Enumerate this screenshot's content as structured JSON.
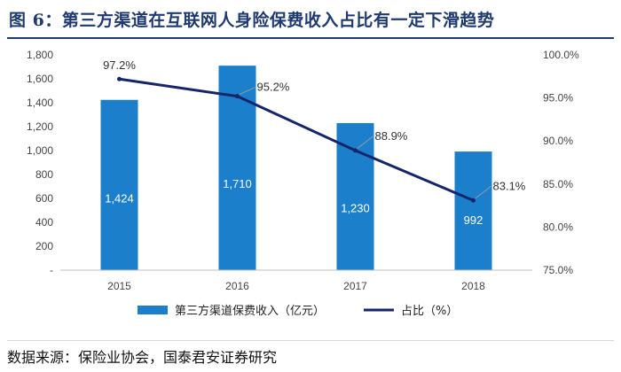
{
  "header": {
    "title": "图 6：第三方渠道在互联网人身险保费收入占比有一定下滑趋势"
  },
  "footer": {
    "source": "数据来源：保险业协会，国泰君安证券研究"
  },
  "colors": {
    "bar": "#1b7fcb",
    "line": "#15256a",
    "axis_text": "#444444",
    "bar_label": "#ffffff"
  },
  "chart_data": {
    "type": "bar",
    "categories": [
      "2015",
      "2016",
      "2017",
      "2018"
    ],
    "series": [
      {
        "name": "第三方渠道保费收入（亿元）",
        "kind": "bar",
        "axis": "left",
        "values": [
          1424,
          1710,
          1230,
          992
        ],
        "labels": [
          "1,424",
          "1,710",
          "1,230",
          "992"
        ]
      },
      {
        "name": "占比（%）",
        "kind": "line",
        "axis": "right",
        "values": [
          97.2,
          95.2,
          88.9,
          83.1
        ],
        "labels": [
          "97.2%",
          "95.2%",
          "88.9%",
          "83.1%"
        ]
      }
    ],
    "y_left": {
      "min": 0,
      "max": 1800,
      "ticks": [
        0,
        200,
        400,
        600,
        800,
        1000,
        1200,
        1400,
        1600,
        1800
      ],
      "tick_labels": [
        "-",
        "200",
        "400",
        "600",
        "800",
        "1,000",
        "1,200",
        "1,400",
        "1,600",
        "1,800"
      ]
    },
    "y_right": {
      "min": 75,
      "max": 100,
      "ticks": [
        75,
        80,
        85,
        90,
        95,
        100
      ],
      "tick_labels": [
        "75.0%",
        "80.0%",
        "85.0%",
        "90.0%",
        "95.0%",
        "100.0%"
      ]
    },
    "legend_position": "bottom-center",
    "grid": false
  }
}
